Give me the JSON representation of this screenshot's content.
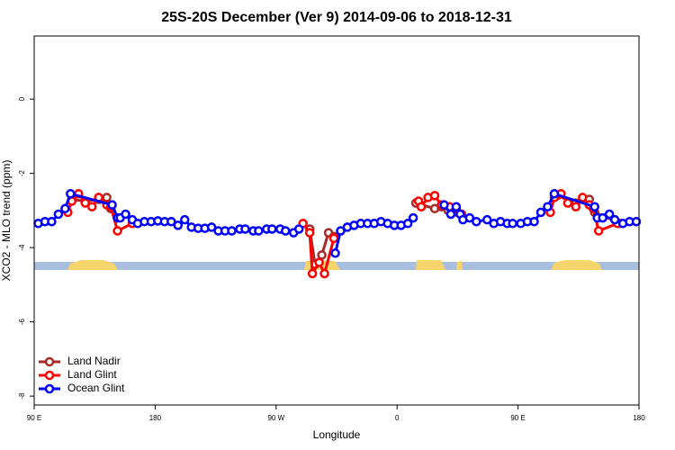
{
  "chart_data": {
    "type": "line",
    "title": "25S-20S December (Ver 9)   2014-09-06 to 2018-12-31",
    "x_label": "Longitude",
    "y_label": "XCO2 - MLO trend (ppm)",
    "xlim": [
      90,
      540
    ],
    "ylim": [
      -8.24,
      1.7
    ],
    "xticks": [
      {
        "value": 90,
        "label": "90 E"
      },
      {
        "value": 180,
        "label": "180"
      },
      {
        "value": 270,
        "label": "90 W"
      },
      {
        "value": 360,
        "label": "0"
      },
      {
        "value": 450,
        "label": "90 E"
      },
      {
        "value": 540,
        "label": "180"
      }
    ],
    "yticks": [
      0,
      -2,
      -4,
      -6,
      -8
    ],
    "legend": "bottomleft",
    "series": [
      {
        "name": "Land Nadir",
        "color": "#a52a2a",
        "x": [
          118,
          128,
          138,
          144,
          147,
          null,
          295,
          299,
          304,
          309,
          313,
          null,
          374,
          388,
          393,
          398,
          405,
          null,
          479,
          493,
          503,
          507,
          526
        ],
        "values": [
          -2.7,
          -2.75,
          -2.7,
          -2.65,
          -2.95,
          null,
          -3.5,
          -4.45,
          -4.2,
          -3.6,
          -3.7,
          null,
          -2.8,
          -2.95,
          -2.9,
          -3.0,
          -3.05,
          null,
          -2.6,
          -2.8,
          -2.7,
          -3.05,
          -3.35
        ]
      },
      {
        "name": "Land Glint",
        "color": "#ff0000",
        "x": [
          115,
          118,
          123,
          128,
          133,
          138,
          144,
          147,
          152,
          163,
          null,
          290,
          295,
          297,
          302,
          306,
          313,
          null,
          376,
          378,
          383,
          388,
          393,
          399,
          404,
          408,
          null,
          474,
          477,
          482,
          487,
          493,
          498,
          503,
          506,
          510,
          524
        ],
        "values": [
          -3.05,
          -2.75,
          -2.55,
          -2.8,
          -2.9,
          -2.65,
          -2.85,
          -2.9,
          -3.55,
          -3.35,
          null,
          -3.35,
          -3.6,
          -4.7,
          -4.4,
          -4.7,
          -3.75,
          null,
          -2.75,
          -2.9,
          -2.65,
          -2.6,
          -2.85,
          -2.9,
          -2.95,
          -3.1,
          null,
          -3.05,
          -2.65,
          -2.55,
          -2.8,
          -2.9,
          -2.65,
          -2.85,
          -2.95,
          -3.55,
          -3.35
        ]
      },
      {
        "name": "Ocean Glint",
        "color": "#0000ff",
        "x": [
          93,
          98,
          103,
          108,
          113,
          117,
          148,
          152,
          154,
          158,
          163,
          167,
          172,
          177,
          182,
          187,
          192,
          197,
          202,
          207,
          212,
          217,
          222,
          227,
          232,
          237,
          243,
          247,
          253,
          257,
          263,
          267,
          273,
          277,
          283,
          287,
          null,
          314,
          318,
          323,
          328,
          333,
          338,
          343,
          348,
          353,
          358,
          363,
          368,
          372,
          null,
          395,
          400,
          404,
          407,
          409,
          414,
          419,
          427,
          432,
          437,
          442,
          446,
          452,
          457,
          462,
          467,
          472,
          477,
          507,
          509,
          513,
          518,
          522,
          528,
          533,
          538
        ],
        "values": [
          -3.35,
          -3.3,
          -3.3,
          -3.1,
          -2.95,
          -2.55,
          -2.85,
          -3.2,
          -3.2,
          -3.1,
          -3.25,
          -3.35,
          -3.3,
          -3.3,
          -3.28,
          -3.3,
          -3.3,
          -3.4,
          -3.25,
          -3.45,
          -3.48,
          -3.48,
          -3.45,
          -3.55,
          -3.55,
          -3.55,
          -3.5,
          -3.5,
          -3.55,
          -3.55,
          -3.5,
          -3.5,
          -3.5,
          -3.55,
          -3.6,
          -3.5,
          null,
          -4.15,
          -3.55,
          -3.45,
          -3.4,
          -3.35,
          -3.35,
          -3.35,
          -3.3,
          -3.35,
          -3.4,
          -3.4,
          -3.35,
          -3.2,
          null,
          -2.85,
          -3.1,
          -2.9,
          -3.1,
          -3.25,
          -3.2,
          -3.3,
          -3.25,
          -3.35,
          -3.3,
          -3.35,
          -3.35,
          -3.35,
          -3.3,
          -3.3,
          -3.05,
          -2.9,
          -2.55,
          -2.9,
          -3.2,
          -3.2,
          -3.1,
          -3.25,
          -3.35,
          -3.3,
          -3.3
        ]
      }
    ]
  }
}
